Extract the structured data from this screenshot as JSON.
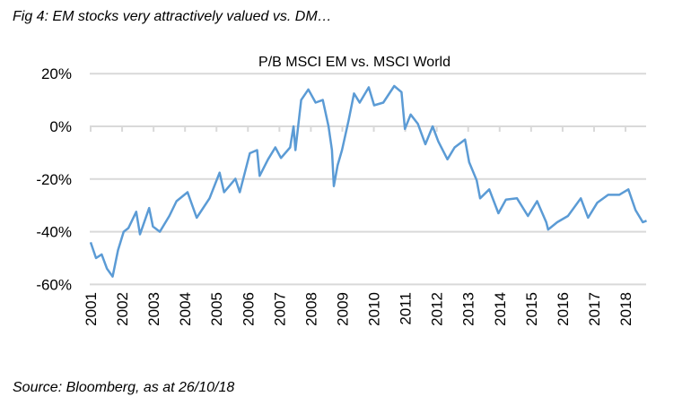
{
  "figure_title": "Fig 4: EM stocks very attractively valued vs. DM…",
  "source": "Source: Bloomberg, as at 26/10/18",
  "chart_data": {
    "type": "line",
    "title": "P/B MSCI EM vs. MSCI World",
    "xlabel": "",
    "ylabel": "",
    "ylim": [
      -60,
      20
    ],
    "xlim": [
      2001,
      2018.7
    ],
    "y_ticks": [
      "20%",
      "0%",
      "-20%",
      "-40%",
      "-60%"
    ],
    "y_tick_values": [
      20,
      0,
      -20,
      -40,
      -60
    ],
    "x_ticks": [
      "2001",
      "2002",
      "2003",
      "2004",
      "2005",
      "2006",
      "2007",
      "2008",
      "2009",
      "2010",
      "2011",
      "2012",
      "2013",
      "2014",
      "2015",
      "2016",
      "2017",
      "2018"
    ],
    "grid": "horizontal",
    "series_color": "#5b9bd5",
    "grid_color": "#d9d9d9",
    "series": [
      {
        "x": [
          2001.0,
          2001.17,
          2001.35,
          2001.52,
          2001.7,
          2001.87,
          2002.05,
          2002.2,
          2002.45,
          2002.57,
          2002.86,
          2002.98,
          2003.2,
          2003.5,
          2003.73,
          2004.08,
          2004.37,
          2004.78,
          2005.1,
          2005.24,
          2005.6,
          2005.74,
          2006.06,
          2006.29,
          2006.37,
          2006.64,
          2006.87,
          2007.05,
          2007.34,
          2007.45,
          2007.51,
          2007.69,
          2007.92,
          2008.15,
          2008.38,
          2008.56,
          2008.67,
          2008.73,
          2008.85,
          2008.99,
          2009.2,
          2009.37,
          2009.55,
          2009.84,
          2010.01,
          2010.3,
          2010.65,
          2010.88,
          2010.99,
          2011.17,
          2011.4,
          2011.64,
          2011.87,
          2012.05,
          2012.34,
          2012.57,
          2012.9,
          2013.03,
          2013.27,
          2013.38,
          2013.67,
          2013.96,
          2014.2,
          2014.55,
          2014.9,
          2015.19,
          2015.48,
          2015.54,
          2015.83,
          2016.17,
          2016.58,
          2016.81,
          2017.1,
          2017.45,
          2017.8,
          2018.09,
          2018.32,
          2018.55,
          2018.67
        ],
        "values": [
          -44,
          -50,
          -48.6,
          -54,
          -57,
          -47,
          -40,
          -38.6,
          -32.4,
          -41,
          -31,
          -38,
          -40,
          -34,
          -28.4,
          -25,
          -34.7,
          -27.3,
          -17.6,
          -25,
          -19.9,
          -25,
          -10.2,
          -9,
          -18.8,
          -12.5,
          -8,
          -12,
          -8,
          0,
          -9,
          10,
          14,
          9,
          10,
          0,
          -9,
          -22.7,
          -14.8,
          -9,
          2.3,
          12.5,
          9,
          14.8,
          8,
          9,
          15.3,
          13,
          -1,
          4.5,
          1,
          -6.8,
          0,
          -5.7,
          -12.5,
          -8,
          -5,
          -13.6,
          -20.5,
          -27.3,
          -23.9,
          -33,
          -27.8,
          -27.3,
          -34,
          -28.4,
          -36.4,
          -39.2,
          -36.4,
          -34,
          -27.3,
          -34.7,
          -29,
          -26,
          -26,
          -23.9,
          -31.8,
          -36.4,
          -35.8
        ]
      }
    ]
  }
}
